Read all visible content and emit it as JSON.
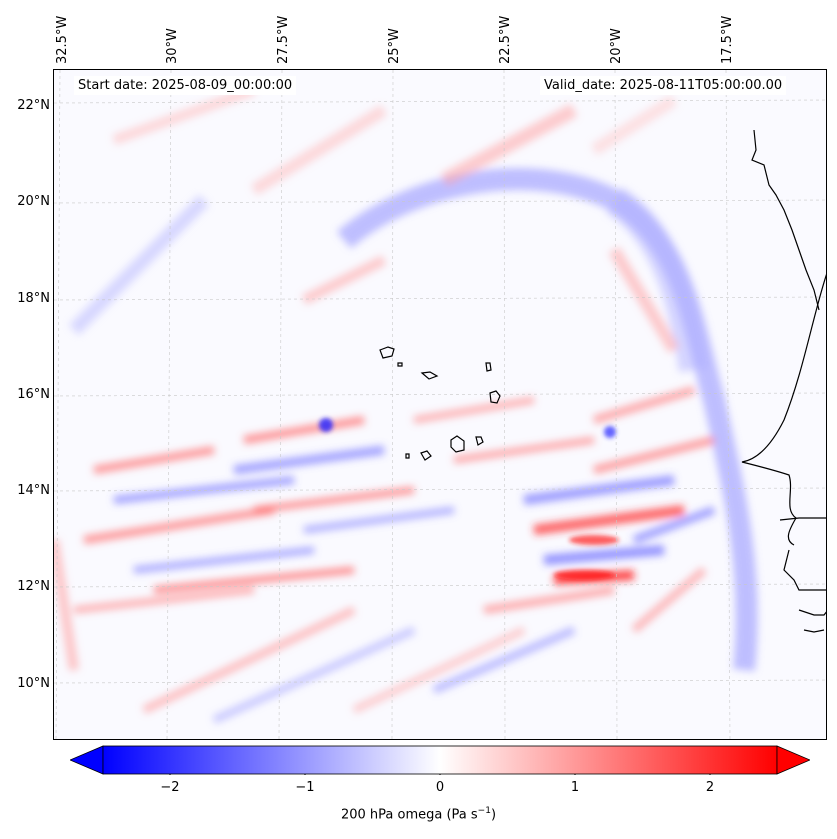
{
  "map": {
    "start_date": "Start date: 2025-08-09_00:00:00",
    "valid_date": "Valid_date: 2025-08-11T05:00:00.00",
    "lon_labels": [
      "32.5°W",
      "30°W",
      "27.5°W",
      "25°W",
      "22.5°W",
      "20°W",
      "17.5°W"
    ],
    "lat_labels": [
      "22°N",
      "20°N",
      "18°N",
      "16°N",
      "14°N",
      "12°N",
      "10°N"
    ],
    "field": "200 hPa omega",
    "colormap": "bwr",
    "colors": {
      "negative": "#0000ff",
      "zero": "#ffffff",
      "positive": "#ff0000",
      "coastline": "#000000"
    }
  },
  "colorbar": {
    "min": -2.5,
    "max": 2.5,
    "extend": "both",
    "tick_labels": [
      "−2",
      "−1",
      "0",
      "1",
      "2"
    ],
    "tick_values": [
      -2,
      -1,
      0,
      1,
      2
    ],
    "label": "200 hPa omega (Pa s",
    "label_sup": "−1",
    "label_end": ")"
  }
}
